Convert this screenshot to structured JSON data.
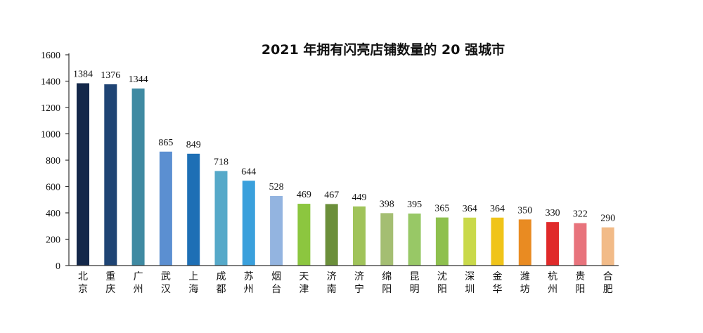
{
  "chart_data": {
    "type": "bar",
    "title": "2021 年拥有闪亮店铺数量的 20 强城市",
    "xlabel": "",
    "ylabel": "",
    "ylim": [
      0,
      1600
    ],
    "yticks": [
      0,
      200,
      400,
      600,
      800,
      1000,
      1200,
      1400,
      1600
    ],
    "categories": [
      "北京",
      "重庆",
      "广州",
      "武汉",
      "上海",
      "成都",
      "苏州",
      "烟台",
      "天津",
      "济南",
      "济宁",
      "绵阳",
      "昆明",
      "沈阳",
      "深圳",
      "金华",
      "潍坊",
      "杭州",
      "贵阳",
      "合肥"
    ],
    "values": [
      1384,
      1376,
      1344,
      865,
      849,
      718,
      644,
      528,
      469,
      467,
      449,
      398,
      395,
      365,
      364,
      364,
      350,
      330,
      322,
      290
    ],
    "colors": [
      "#14284a",
      "#1f4474",
      "#3f8aa2",
      "#5b8fd1",
      "#1e6fb5",
      "#56a9c9",
      "#3aa0dc",
      "#93b4e0",
      "#8cc63f",
      "#6b8f3a",
      "#a0c35a",
      "#a4be72",
      "#98c866",
      "#8ec04e",
      "#c9d94a",
      "#f0c419",
      "#e98b22",
      "#e02a2a",
      "#e8737c",
      "#f2bb88"
    ]
  }
}
